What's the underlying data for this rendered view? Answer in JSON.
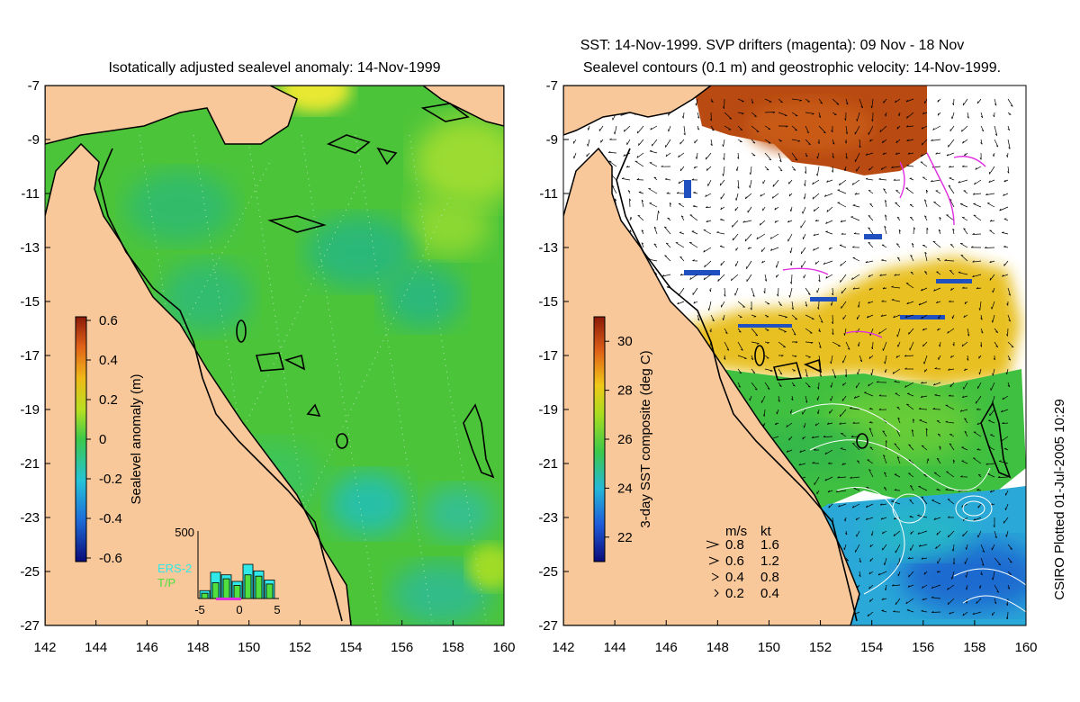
{
  "left_panel": {
    "title": "Isotatically adjusted sealevel anomaly: 14-Nov-1999",
    "colorbar": {
      "label": "Sealevel anomaly (m)",
      "ticks": [
        "0.6",
        "0.4",
        "0.2",
        "0",
        "-0.2",
        "-0.4",
        "-0.6"
      ],
      "range": [
        -0.6,
        0.6
      ]
    },
    "inset": {
      "ymax_label": "500",
      "x_ticks": [
        "-5",
        "0",
        "5"
      ],
      "legend": [
        "ERS-2",
        "T/P"
      ],
      "ers2_counts": [
        60,
        200,
        180,
        130,
        260,
        210,
        140
      ],
      "tp_counts": [
        40,
        120,
        150,
        100,
        180,
        170,
        110
      ]
    }
  },
  "right_panel": {
    "title_line1": "SST: 14-Nov-1999. SVP drifters (magenta): 09 Nov - 18 Nov",
    "title_line2": "Sealevel contours (0.1 m) and geostrophic velocity: 14-Nov-1999.",
    "colorbar": {
      "label": "3-day SST composite (deg C)",
      "ticks": [
        "30",
        "28",
        "26",
        "24",
        "22"
      ],
      "range": [
        21,
        31
      ]
    },
    "velocity_key": {
      "header_ms": "m/s",
      "header_kt": "kt",
      "rows": [
        {
          "ms": "0.8",
          "kt": "1.6"
        },
        {
          "ms": "0.6",
          "kt": "1.2"
        },
        {
          "ms": "0.4",
          "kt": "0.8"
        },
        {
          "ms": "0.2",
          "kt": "0.4"
        }
      ]
    }
  },
  "axes": {
    "x_ticks": [
      "142",
      "144",
      "146",
      "148",
      "150",
      "152",
      "154",
      "156",
      "158",
      "160"
    ],
    "y_ticks": [
      "-7",
      "-9",
      "-11",
      "-13",
      "-15",
      "-17",
      "-19",
      "-21",
      "-23",
      "-25",
      "-27"
    ],
    "lon_range": [
      142,
      160
    ],
    "lat_range": [
      -27,
      -7
    ]
  },
  "credit": "CSIRO Plotted 01-Jul-2005 10:29",
  "colors": {
    "land": "#f8c89a",
    "sla_green": "#4cc43a",
    "sst_warm": "#b84a10",
    "drifter": "#e030e0"
  }
}
